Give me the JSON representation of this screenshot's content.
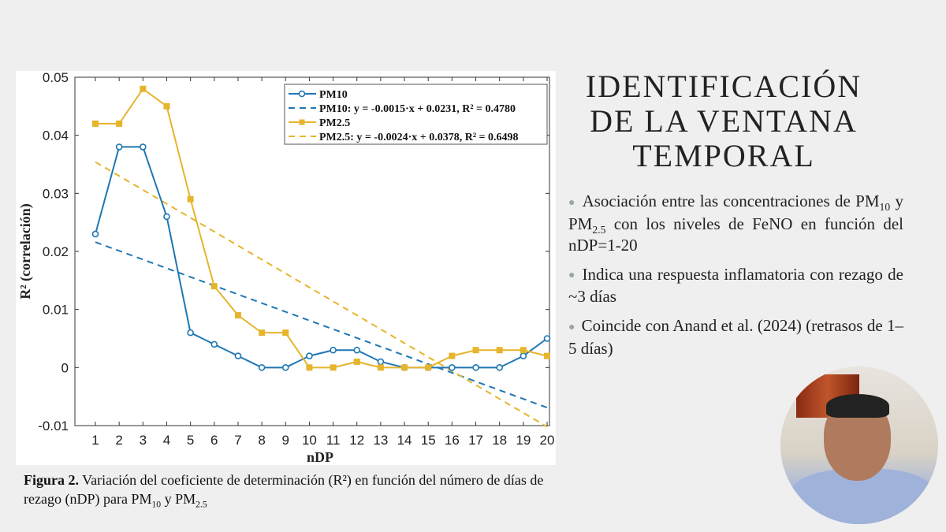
{
  "slide": {
    "title_lines": [
      "IDENTIFICACIÓN",
      "DE LA VENTANA",
      "TEMPORAL"
    ],
    "bullets": [
      {
        "parts": [
          "Asociación entre las concentraciones de PM",
          "10",
          " y PM",
          "2.5",
          " con los niveles de FeNO en función del nDP=1-20"
        ]
      },
      {
        "parts": [
          "Indica una respuesta inflamatoria con rezago de ~3 días"
        ]
      },
      {
        "parts": [
          "Coincide con Anand et al. (2024) (retrasos de 1–5 días)"
        ]
      }
    ],
    "caption": {
      "label": "Figura 2.",
      "text_a": " Variación del coeficiente de determinación (R²) en función del número de días de rezago (nDP) para PM",
      "sub1": "10",
      "text_b": " y PM",
      "sub2": "2.5"
    },
    "webcam_icon": "presenter-video"
  },
  "chart_data": {
    "type": "line",
    "xlabel": "nDP",
    "ylabel": "R² (correlación)",
    "x": [
      1,
      2,
      3,
      4,
      5,
      6,
      7,
      8,
      9,
      10,
      11,
      12,
      13,
      14,
      15,
      16,
      17,
      18,
      19,
      20
    ],
    "xlim": [
      0.3,
      20
    ],
    "ylim": [
      -0.01,
      0.05
    ],
    "yticks": [
      "-0.01",
      "0",
      "0.01",
      "0.02",
      "0.03",
      "0.04",
      "0.05"
    ],
    "grid": false,
    "legend_position": "top-right",
    "series": [
      {
        "name": "PM10",
        "color": "#1f77b4",
        "marker": "circle",
        "values": [
          0.023,
          0.038,
          0.038,
          0.026,
          0.006,
          0.004,
          0.002,
          0,
          0,
          0.002,
          0.003,
          0.003,
          0.001,
          0,
          0,
          0,
          0,
          0,
          0.002,
          0.005
        ]
      },
      {
        "name": "PM2.5",
        "color": "#e6b52c",
        "marker": "square",
        "values": [
          0.042,
          0.042,
          0.048,
          0.045,
          0.029,
          0.014,
          0.009,
          0.006,
          0.006,
          0,
          0,
          0.001,
          0,
          0,
          0,
          0.002,
          0.003,
          0.003,
          0.003,
          0.002
        ]
      }
    ],
    "trendlines": [
      {
        "name": "PM10: y = -0.0015·x + 0.0231, R² = 0.4780",
        "color": "#1f77b4",
        "slope": -0.0015,
        "intercept": 0.0231
      },
      {
        "name": "PM2.5: y = -0.0024·x + 0.0378, R² = 0.6498",
        "color": "#e6b52c",
        "slope": -0.0024,
        "intercept": 0.0378
      }
    ]
  }
}
